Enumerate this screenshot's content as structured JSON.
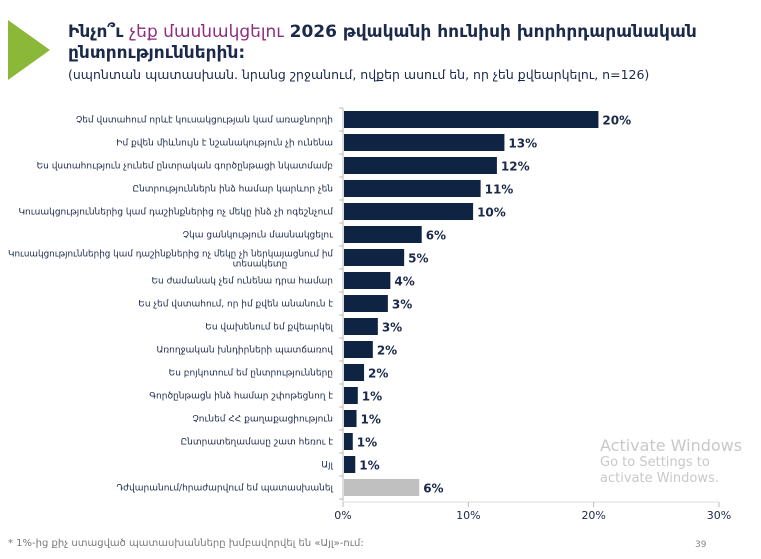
{
  "title": {
    "part1": "Ինչո՞ւ ",
    "highlight": "չեք մասնակցելու",
    "part2": " 2026 թվականի հունիսի խորհրդարանական ընտրություններին:"
  },
  "subtitle": "(սպոնտան պատասխան. նրանց շրջանում, ովքեր ասում են, որ չեն քվեարկելու, n=126)",
  "chart_data": {
    "type": "bar",
    "orientation": "horizontal",
    "categories": [
      "Չեմ վստահում որևէ կուսակցության կամ առաջնորդի",
      "Իմ քվեն միևնույն է նշանակություն չի ունենա",
      "Ես վստահություն չունեմ ընտրական գործընթացի նկատմամբ",
      "Ընտրություններն ինձ համար կարևոր չեն",
      "Կուսակցություններից կամ դաշինքներից ոչ մեկը ինձ չի ոգեշնչում",
      "Չկա ցանկություն մասնակցելու",
      "Կուսակցություններից կամ դաշինքներից ոչ մեկը չի ներկայացնում իմ տեսակետը",
      "Ես ժամանակ չեմ ունենա դրա համար",
      "Ես չեմ վստահում, որ իմ քվեն անանուն է",
      "Ես վախենում եմ քվեարկել",
      "Առողջական խնդիրների պատճառով",
      "Ես բոյկոտում եմ ընտրությունները",
      "Գործընթացն ինձ համար շփոթեցնող է",
      "Չունեմ ՀՀ քաղաքացիություն",
      "Ընտրատեղամասը շատ հեռու է",
      "Այլ",
      "Դժվարանում/հրաժարվում եմ պատասխանել"
    ],
    "values": [
      20.3,
      12.8,
      12.2,
      10.9,
      10.3,
      6.2,
      4.8,
      3.7,
      3.5,
      2.7,
      2.3,
      1.6,
      1.1,
      1.0,
      0.7,
      0.9,
      6.0
    ],
    "value_labels": [
      "20%",
      "13%",
      "12%",
      "11%",
      "10%",
      "6%",
      "5%",
      "4%",
      "3%",
      "3%",
      "2%",
      "2%",
      "1%",
      "1%",
      "1%",
      "1%",
      "6%"
    ],
    "highlight_last": true,
    "colors": {
      "main": "#0f2342",
      "last": "#c0c0c0"
    },
    "xlim": [
      0,
      30
    ],
    "xticks": [
      "0%",
      "10%",
      "20%",
      "30%"
    ],
    "xlabel": "",
    "ylabel": ""
  },
  "footnote": "* 1%-ից քիչ ստացված պատասխանները խմբավորվել են «Այլ»-ում:",
  "page_number": "39",
  "watermark": {
    "line1": "Activate Windows",
    "line2": "Go to Settings to activate Windows."
  }
}
